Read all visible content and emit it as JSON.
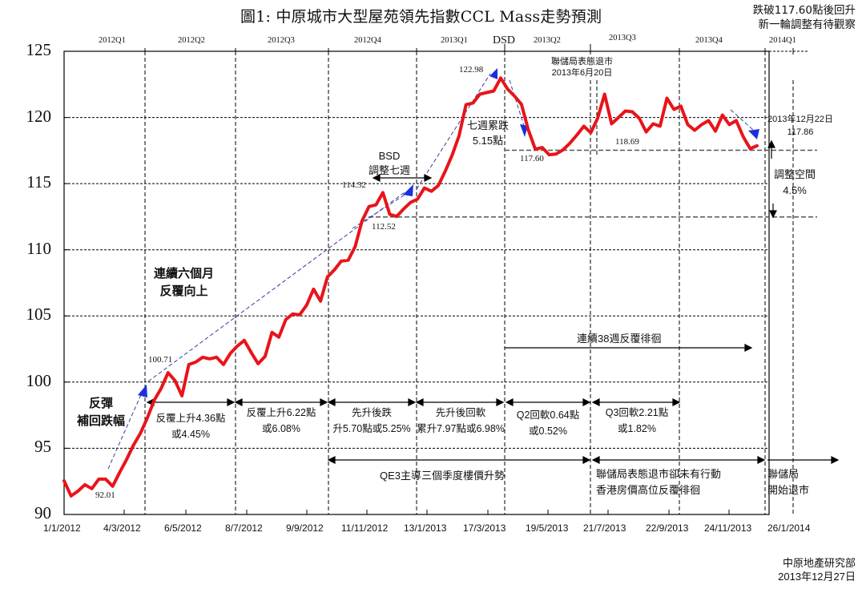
{
  "title": "圖1: 中原城市大型屋苑領先指數CCL Mass走勢預測",
  "top_right_note": [
    "跌破117.60點後回升",
    "新一輪調整有待觀察"
  ],
  "footer": [
    "中原地產研究部",
    "2013年12月27日"
  ],
  "quarters": [
    "2012Q1",
    "2012Q2",
    "2012Q3",
    "2012Q4",
    "2013Q1",
    "2013Q2",
    "2013Q3",
    "2013Q4",
    "2014Q1"
  ],
  "y_ticks": [
    "125",
    "120",
    "115",
    "110",
    "105",
    "100",
    "95",
    "90"
  ],
  "x_ticks": [
    "1/1/2012",
    "4/3/2012",
    "6/5/2012",
    "8/7/2012",
    "9/9/2012",
    "11/11/2012",
    "13/1/2013",
    "17/3/2013",
    "19/5/2013",
    "21/7/2013",
    "22/9/2013",
    "24/11/2013",
    "26/1/2014"
  ],
  "annotations": {
    "dsd": "DSD",
    "bsd": "BSD",
    "bsd_adjust": "調整七週",
    "fed_event_1": "聯儲局表態退市",
    "fed_event_2": "2013年6月20日",
    "seven_week_drop_1": "七週累跌",
    "seven_week_drop_2": "5.15點",
    "dec22_1": "2013年12月22日",
    "dec22_2": "117.86",
    "adjust_room_1": "調整空間",
    "adjust_room_2": "4.5%",
    "six_months_1": "連續六個月",
    "six_months_2": "反覆向上",
    "rebound_1": "反彈",
    "rebound_2": "補回跌幅",
    "consolidation_38w": "連續38週反覆徘徊",
    "seg1_1": "反覆上升4.36點",
    "seg1_2": "或4.45%",
    "seg2_1": "反覆上升6.22點",
    "seg2_2": "或6.08%",
    "seg3_1": "先升後跌",
    "seg3_2": "升5.70點或5.25%",
    "seg4_1": "先升後回軟",
    "seg4_2": "累升7.97點或6.98%",
    "seg5_1": "Q2回軟0.64點",
    "seg5_2": "或0.52%",
    "seg6_1": "Q3回軟2.21點",
    "seg6_2": "或1.82%",
    "qe3": "QE3主導三個季度樓價升勢",
    "fed_no_action_1": "聯儲局表態退市卻未有行動",
    "fed_no_action_2": "香港房價高位反覆徘徊",
    "fed_start_1": "聯儲局",
    "fed_start_2": "開始退市",
    "v_92_01": "92.01",
    "v_100_71": "100.71",
    "v_114_32": "114.32",
    "v_112_52": "112.52",
    "v_122_98": "122.98",
    "v_117_60": "117.60",
    "v_118_69": "118.69"
  },
  "colors": {
    "line": "#e8141a",
    "arrow_head": "#1a2fe0",
    "trend_dash": "#3a3fa0",
    "grid": "#000000"
  },
  "chart_data": {
    "type": "line",
    "title": "圖1: 中原城市大型屋苑領先指數CCL Mass走勢預測",
    "xlabel": "",
    "ylabel": "",
    "ylim": [
      90,
      125
    ],
    "y_ticks": [
      90,
      95,
      100,
      105,
      110,
      115,
      120,
      125
    ],
    "x_tick_labels": [
      "1/1/2012",
      "4/3/2012",
      "6/5/2012",
      "8/7/2012",
      "9/9/2012",
      "11/11/2012",
      "13/1/2013",
      "17/3/2013",
      "19/5/2013",
      "21/7/2013",
      "22/9/2013",
      "24/11/2013",
      "26/1/2014"
    ],
    "grid": true,
    "legend": null,
    "series": [
      {
        "name": "CCL Mass (weekly)",
        "color": "#e8141a",
        "values": [
          92.55,
          91.4,
          91.76,
          92.25,
          91.95,
          92.67,
          92.67,
          92.13,
          93.16,
          94.13,
          95.22,
          96.13,
          97.28,
          98.61,
          99.52,
          100.71,
          100.12,
          98.97,
          101.33,
          101.51,
          101.88,
          101.76,
          101.88,
          101.33,
          102.18,
          102.73,
          103.15,
          102.24,
          101.39,
          101.94,
          103.76,
          103.4,
          104.73,
          105.15,
          105.09,
          105.82,
          107.03,
          106.12,
          107.94,
          108.49,
          109.15,
          109.21,
          110.24,
          112.18,
          113.27,
          113.39,
          114.32,
          112.67,
          112.52,
          113.09,
          113.58,
          113.82,
          114.67,
          114.42,
          114.85,
          115.94,
          117.15,
          118.61,
          120.97,
          121.09,
          121.76,
          121.88,
          122.0,
          122.98,
          122.15,
          121.61,
          121.0,
          119.06,
          117.6,
          117.73,
          117.18,
          117.24,
          117.55,
          118.06,
          118.67,
          119.34,
          118.85,
          119.94,
          121.76,
          119.52,
          120.0,
          120.49,
          120.43,
          119.94,
          118.91,
          119.52,
          119.34,
          121.46,
          120.61,
          120.85,
          119.46,
          119.03,
          119.46,
          119.76,
          118.97,
          120.18,
          119.46,
          119.76,
          118.55,
          117.64,
          117.86
        ]
      }
    ],
    "labeled_points": [
      {
        "label": "92.01",
        "value": 92.01
      },
      {
        "label": "100.71",
        "value": 100.71
      },
      {
        "label": "114.32",
        "value": 114.32
      },
      {
        "label": "112.52",
        "value": 112.52
      },
      {
        "label": "122.98",
        "value": 122.98
      },
      {
        "label": "117.60",
        "value": 117.6
      },
      {
        "label": "118.69",
        "value": 118.69
      },
      {
        "label": "2013年12月22日 117.86",
        "value": 117.86
      }
    ],
    "reference_lines": [
      117.6,
      112.52
    ],
    "quarter_labels": [
      "2012Q1",
      "2012Q2",
      "2012Q3",
      "2012Q4",
      "2013Q1",
      "2013Q2",
      "2013Q3",
      "2013Q4",
      "2014Q1"
    ]
  }
}
